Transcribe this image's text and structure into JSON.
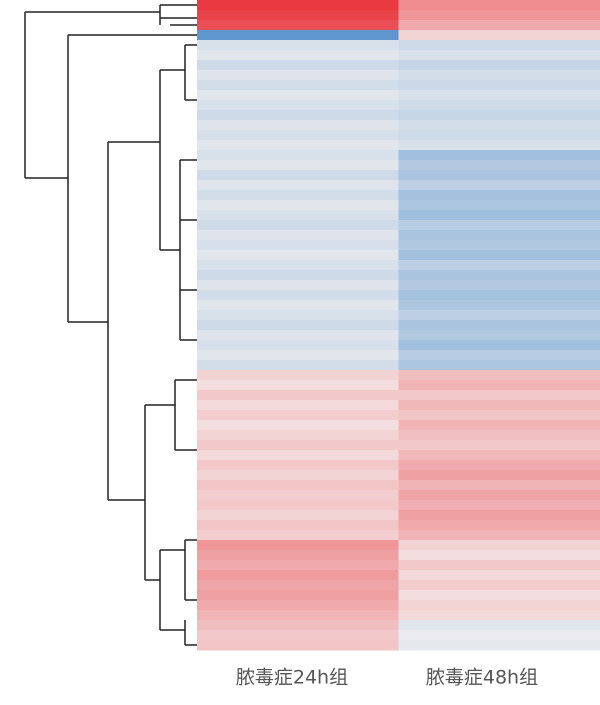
{
  "chart_data": {
    "type": "heatmap",
    "colors": {
      "low": "#3a7fc4",
      "mid": "#f4f1f1",
      "high": "#e8262e"
    },
    "vlim": [
      -1,
      1
    ],
    "series": [
      {
        "name": "脓毒症24h组",
        "values": [
          0.9,
          0.85,
          0.8,
          -0.8,
          -0.15,
          -0.1,
          -0.2,
          -0.12,
          -0.18,
          -0.1,
          -0.15,
          -0.2,
          -0.12,
          -0.16,
          -0.1,
          -0.15,
          -0.1,
          -0.2,
          -0.12,
          -0.18,
          -0.1,
          -0.15,
          -0.2,
          -0.12,
          -0.16,
          -0.1,
          -0.15,
          -0.2,
          -0.12,
          -0.18,
          -0.1,
          -0.15,
          -0.2,
          -0.12,
          -0.16,
          -0.1,
          -0.18,
          0.15,
          0.1,
          0.2,
          0.12,
          0.18,
          0.1,
          0.15,
          0.2,
          0.12,
          0.2,
          0.15,
          0.22,
          0.18,
          0.2,
          0.15,
          0.22,
          0.18,
          0.45,
          0.4,
          0.35,
          0.42,
          0.38,
          0.4,
          0.35,
          0.3,
          0.25,
          0.2,
          0.22
        ]
      },
      {
        "name": "脓毒症48h组",
        "values": [
          0.5,
          0.45,
          0.35,
          0.15,
          -0.2,
          -0.15,
          -0.25,
          -0.18,
          -0.22,
          -0.15,
          -0.2,
          -0.25,
          -0.18,
          -0.2,
          -0.15,
          -0.45,
          -0.35,
          -0.4,
          -0.3,
          -0.42,
          -0.38,
          -0.45,
          -0.32,
          -0.4,
          -0.36,
          -0.44,
          -0.3,
          -0.4,
          -0.35,
          -0.42,
          -0.38,
          -0.3,
          -0.4,
          -0.36,
          -0.44,
          -0.32,
          -0.38,
          0.25,
          0.3,
          0.2,
          0.28,
          0.22,
          0.3,
          0.25,
          0.2,
          0.28,
          0.35,
          0.4,
          0.3,
          0.38,
          0.33,
          0.4,
          0.36,
          0.3,
          0.15,
          0.1,
          0.2,
          0.12,
          0.18,
          0.1,
          0.15,
          0.12,
          -0.1,
          -0.05,
          -0.08
        ]
      }
    ]
  }
}
